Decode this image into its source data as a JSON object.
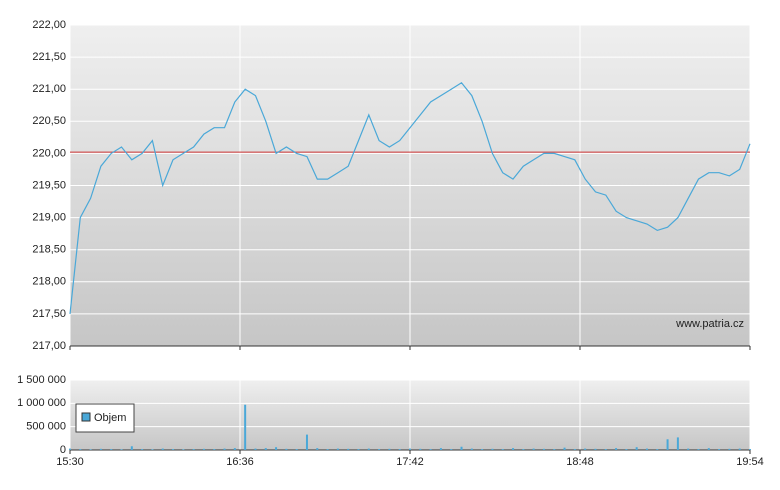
{
  "chart_data": [
    {
      "type": "line",
      "x": [
        "15:30",
        "15:34",
        "15:38",
        "15:42",
        "15:46",
        "15:50",
        "15:54",
        "15:58",
        "16:02",
        "16:06",
        "16:10",
        "16:14",
        "16:18",
        "16:22",
        "16:26",
        "16:30",
        "16:34",
        "16:38",
        "16:42",
        "16:46",
        "16:50",
        "16:54",
        "16:58",
        "17:02",
        "17:06",
        "17:10",
        "17:14",
        "17:18",
        "17:22",
        "17:26",
        "17:30",
        "17:34",
        "17:38",
        "17:42",
        "17:46",
        "17:50",
        "17:54",
        "17:58",
        "18:02",
        "18:06",
        "18:10",
        "18:14",
        "18:18",
        "18:22",
        "18:26",
        "18:30",
        "18:34",
        "18:38",
        "18:42",
        "18:46",
        "18:50",
        "18:54",
        "18:58",
        "19:02",
        "19:06",
        "19:10",
        "19:14",
        "19:18",
        "19:22",
        "19:26",
        "19:30",
        "19:34",
        "19:38",
        "19:42",
        "19:46",
        "19:50",
        "19:54"
      ],
      "values": [
        217.5,
        219.0,
        219.3,
        219.8,
        220.0,
        220.1,
        219.9,
        220.0,
        220.2,
        219.5,
        219.9,
        220.0,
        220.1,
        220.3,
        220.4,
        220.4,
        220.8,
        221.0,
        220.9,
        220.5,
        220.0,
        220.1,
        220.0,
        219.95,
        219.6,
        219.6,
        219.7,
        219.8,
        220.2,
        220.6,
        220.2,
        220.1,
        220.2,
        220.4,
        220.6,
        220.8,
        220.9,
        221.0,
        221.1,
        220.9,
        220.5,
        220.0,
        219.7,
        219.6,
        219.8,
        219.9,
        220.0,
        220.0,
        219.95,
        219.9,
        219.6,
        219.4,
        219.35,
        219.1,
        219.0,
        218.95,
        218.9,
        218.8,
        218.85,
        219.0,
        219.3,
        219.6,
        219.7,
        219.7,
        219.65,
        219.75,
        220.15
      ],
      "color": "#4aa8d8",
      "reference_line": 220.02,
      "reference_color": "#cc3333",
      "ylim": [
        217,
        222
      ],
      "yticks": [
        {
          "value": 217,
          "label": "217,00"
        },
        {
          "value": 217.5,
          "label": "217,50"
        },
        {
          "value": 218,
          "label": "218,00"
        },
        {
          "value": 218.5,
          "label": "218,50"
        },
        {
          "value": 219,
          "label": "219,00"
        },
        {
          "value": 219.5,
          "label": "219,50"
        },
        {
          "value": 220,
          "label": "220,00"
        },
        {
          "value": 220.5,
          "label": "220,50"
        },
        {
          "value": 221,
          "label": "221,00"
        },
        {
          "value": 221.5,
          "label": "221,50"
        },
        {
          "value": 222,
          "label": "222,00"
        }
      ],
      "grid": true,
      "annotation": "www.patria.cz"
    },
    {
      "type": "bar",
      "series": [
        {
          "name": "Objem",
          "color": "#4aa8d8",
          "values": [
            30000,
            20000,
            15000,
            25000,
            20000,
            15000,
            80000,
            20000,
            15000,
            30000,
            20000,
            15000,
            20000,
            25000,
            20000,
            30000,
            40000,
            970000,
            30000,
            40000,
            60000,
            25000,
            20000,
            330000,
            40000,
            20000,
            30000,
            25000,
            20000,
            30000,
            20000,
            25000,
            20000,
            30000,
            25000,
            20000,
            40000,
            20000,
            70000,
            30000,
            20000,
            25000,
            20000,
            40000,
            20000,
            30000,
            25000,
            20000,
            50000,
            20000,
            30000,
            25000,
            20000,
            40000,
            20000,
            60000,
            30000,
            20000,
            230000,
            270000,
            30000,
            20000,
            40000,
            20000,
            25000,
            30000,
            20000
          ]
        }
      ],
      "ylim": [
        0,
        1500000
      ],
      "yticks": [
        {
          "value": 0,
          "label": "0"
        },
        {
          "value": 500000,
          "label": "500 000"
        },
        {
          "value": 1000000,
          "label": "1 000 000"
        },
        {
          "value": 1500000,
          "label": "1 500 000"
        }
      ],
      "xticks": [
        "15:30",
        "16:36",
        "17:42",
        "18:48",
        "19:54"
      ],
      "grid": true
    }
  ]
}
